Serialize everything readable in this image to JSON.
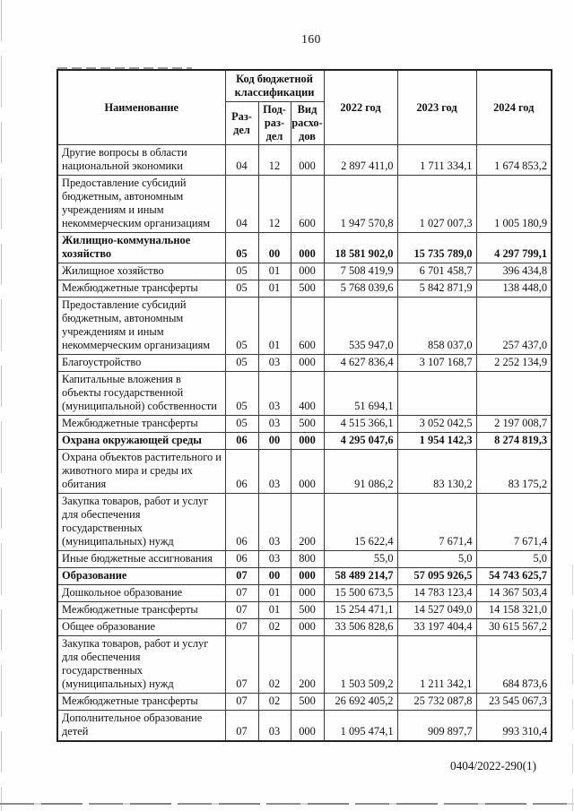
{
  "page": {
    "number": "160",
    "footer_code": "0404/2022-290(1)"
  },
  "table": {
    "headers": {
      "name": "Наименование",
      "code_group": "Код бюджетной классификации",
      "code_cols": [
        "Раз-\nдел",
        "Под-\nраз-\nдел",
        "Вид\nрасхо-\nдов"
      ],
      "years": [
        "2022 год",
        "2023 год",
        "2024 год"
      ]
    },
    "rows": [
      {
        "bold": false,
        "name": "Другие вопросы в области национальной экономики",
        "razdel": "04",
        "podrazdel": "12",
        "vid": "000",
        "y2022": "2 897 411,0",
        "y2023": "1 711 334,1",
        "y2024": "1 674 853,2"
      },
      {
        "bold": false,
        "name": "Предоставление субсидий бюджетным, автономным учреждениям и иным некоммерческим организациям",
        "razdel": "04",
        "podrazdel": "12",
        "vid": "600",
        "y2022": "1 947 570,8",
        "y2023": "1 027 007,3",
        "y2024": "1 005 180,9"
      },
      {
        "bold": true,
        "name": "Жилищно-коммунальное хозяйство",
        "razdel": "05",
        "podrazdel": "00",
        "vid": "000",
        "y2022": "18 581 902,0",
        "y2023": "15 735 789,0",
        "y2024": "4 297 799,1"
      },
      {
        "bold": false,
        "name": "Жилищное хозяйство",
        "razdel": "05",
        "podrazdel": "01",
        "vid": "000",
        "y2022": "7 508 419,9",
        "y2023": "6 701 458,7",
        "y2024": "396 434,8"
      },
      {
        "bold": false,
        "name": "Межбюджетные трансферты",
        "razdel": "05",
        "podrazdel": "01",
        "vid": "500",
        "y2022": "5 768 039,6",
        "y2023": "5 842 871,9",
        "y2024": "138 448,0"
      },
      {
        "bold": false,
        "name": "Предоставление субсидий бюджетным, автономным учреждениям и иным некоммерческим организациям",
        "razdel": "05",
        "podrazdel": "01",
        "vid": "600",
        "y2022": "535 947,0",
        "y2023": "858 037,0",
        "y2024": "257 437,0"
      },
      {
        "bold": false,
        "name": "Благоустройство",
        "razdel": "05",
        "podrazdel": "03",
        "vid": "000",
        "y2022": "4 627 836,4",
        "y2023": "3 107 168,7",
        "y2024": "2 252 134,9"
      },
      {
        "bold": false,
        "name": "Капитальные вложения в объекты государственной (муниципальной) собственности",
        "razdel": "05",
        "podrazdel": "03",
        "vid": "400",
        "y2022": "51 694,1",
        "y2023": "",
        "y2024": ""
      },
      {
        "bold": false,
        "name": "Межбюджетные трансферты",
        "razdel": "05",
        "podrazdel": "03",
        "vid": "500",
        "y2022": "4 515 366,1",
        "y2023": "3 052 042,5",
        "y2024": "2 197 008,7"
      },
      {
        "bold": true,
        "name": "Охрана окружающей среды",
        "razdel": "06",
        "podrazdel": "00",
        "vid": "000",
        "y2022": "4 295 047,6",
        "y2023": "1 954 142,3",
        "y2024": "8 274 819,3"
      },
      {
        "bold": false,
        "name": "Охрана объектов растительного и животного мира и среды их обитания",
        "razdel": "06",
        "podrazdel": "03",
        "vid": "000",
        "y2022": "91 086,2",
        "y2023": "83 130,2",
        "y2024": "83 175,2"
      },
      {
        "bold": false,
        "name": "Закупка товаров, работ и услуг для обеспечения государственных (муниципальных) нужд",
        "razdel": "06",
        "podrazdel": "03",
        "vid": "200",
        "y2022": "15 622,4",
        "y2023": "7 671,4",
        "y2024": "7 671,4"
      },
      {
        "bold": false,
        "name": "Иные бюджетные ассигнования",
        "razdel": "06",
        "podrazdel": "03",
        "vid": "800",
        "y2022": "55,0",
        "y2023": "5,0",
        "y2024": "5,0"
      },
      {
        "bold": true,
        "name": "Образование",
        "razdel": "07",
        "podrazdel": "00",
        "vid": "000",
        "y2022": "58 489 214,7",
        "y2023": "57 095 926,5",
        "y2024": "54 743 625,7"
      },
      {
        "bold": false,
        "name": "Дошкольное образование",
        "razdel": "07",
        "podrazdel": "01",
        "vid": "000",
        "y2022": "15 500 673,5",
        "y2023": "14 783 123,4",
        "y2024": "14 367 503,4"
      },
      {
        "bold": false,
        "name": "Межбюджетные трансферты",
        "razdel": "07",
        "podrazdel": "01",
        "vid": "500",
        "y2022": "15 254 471,1",
        "y2023": "14 527 049,0",
        "y2024": "14 158 321,0"
      },
      {
        "bold": false,
        "name": "Общее образование",
        "razdel": "07",
        "podrazdel": "02",
        "vid": "000",
        "y2022": "33 506 828,6",
        "y2023": "33 197 404,4",
        "y2024": "30 615 567,2"
      },
      {
        "bold": false,
        "name": "Закупка товаров, работ и услуг для обеспечения государственных (муниципальных) нужд",
        "razdel": "07",
        "podrazdel": "02",
        "vid": "200",
        "y2022": "1 503 509,2",
        "y2023": "1 211 342,1",
        "y2024": "684 873,6"
      },
      {
        "bold": false,
        "name": "Межбюджетные трансферты",
        "razdel": "07",
        "podrazdel": "02",
        "vid": "500",
        "y2022": "26 692 405,2",
        "y2023": "25 732 087,8",
        "y2024": "23 545 067,3"
      },
      {
        "bold": false,
        "name": "Дополнительное образование детей",
        "razdel": "07",
        "podrazdel": "03",
        "vid": "000",
        "y2022": "1 095 474,1",
        "y2023": "909 897,7",
        "y2024": "993 310,4"
      }
    ]
  }
}
